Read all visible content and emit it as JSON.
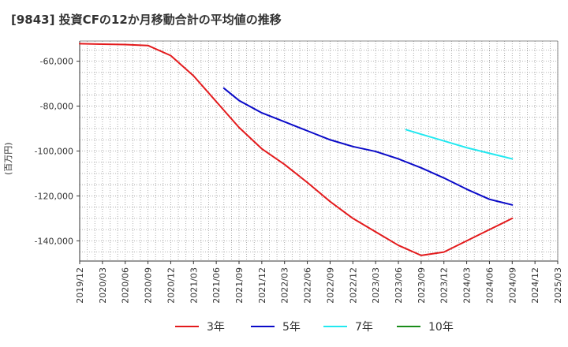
{
  "chart_data": {
    "type": "line",
    "title": "[9843]  投資CFの12か月移動合計の平均値の推移",
    "ylabel": "(百万円)",
    "xlabel": "",
    "ylim": [
      -149000,
      -51000
    ],
    "yticks": [
      -60000,
      -80000,
      -100000,
      -120000,
      -140000
    ],
    "ytick_labels": [
      "-60,000",
      "-80,000",
      "-100,000",
      "-120,000",
      "-140,000"
    ],
    "x_start": "2019/12",
    "x_end": "2025/03",
    "xtick_labels": [
      "2019/12",
      "2020/03",
      "2020/06",
      "2020/09",
      "2020/12",
      "2021/03",
      "2021/06",
      "2021/09",
      "2021/12",
      "2022/03",
      "2022/06",
      "2022/09",
      "2022/12",
      "2023/03",
      "2023/06",
      "2023/09",
      "2023/12",
      "2024/03",
      "2024/06",
      "2024/09",
      "2024/12",
      "2025/03"
    ],
    "grid": true,
    "legend_position": "bottom",
    "series": [
      {
        "name": "3年",
        "color": "#e31a1c",
        "points": [
          [
            "2019/12",
            -52200
          ],
          [
            "2020/03",
            -52400
          ],
          [
            "2020/06",
            -52600
          ],
          [
            "2020/09",
            -53000
          ],
          [
            "2020/12",
            -57500
          ],
          [
            "2021/03",
            -66500
          ],
          [
            "2021/06",
            -78000
          ],
          [
            "2021/09",
            -89500
          ],
          [
            "2021/12",
            -99000
          ],
          [
            "2022/03",
            -106000
          ],
          [
            "2022/06",
            -114000
          ],
          [
            "2022/09",
            -122500
          ],
          [
            "2022/12",
            -130000
          ],
          [
            "2023/03",
            -136000
          ],
          [
            "2023/06",
            -142000
          ],
          [
            "2023/09",
            -146500
          ],
          [
            "2023/12",
            -145000
          ],
          [
            "2024/03",
            -140000
          ],
          [
            "2024/06",
            -135000
          ],
          [
            "2024/09",
            -130000
          ]
        ]
      },
      {
        "name": "5年",
        "color": "#0a0ac8",
        "points": [
          [
            "2021/07",
            -72000
          ],
          [
            "2021/09",
            -77500
          ],
          [
            "2021/12",
            -83000
          ],
          [
            "2022/03",
            -87000
          ],
          [
            "2022/06",
            -91000
          ],
          [
            "2022/09",
            -95000
          ],
          [
            "2022/12",
            -98000
          ],
          [
            "2023/03",
            -100200
          ],
          [
            "2023/06",
            -103500
          ],
          [
            "2023/09",
            -107500
          ],
          [
            "2023/12",
            -112000
          ],
          [
            "2024/03",
            -117000
          ],
          [
            "2024/06",
            -121500
          ],
          [
            "2024/09",
            -124000
          ]
        ]
      },
      {
        "name": "7年",
        "color": "#22e8f0",
        "points": [
          [
            "2023/07",
            -90500
          ],
          [
            "2023/09",
            -92500
          ],
          [
            "2023/12",
            -95500
          ],
          [
            "2024/03",
            -98500
          ],
          [
            "2024/06",
            -101000
          ],
          [
            "2024/09",
            -103500
          ]
        ]
      },
      {
        "name": "10年",
        "color": "#1a8c1a",
        "points": []
      }
    ]
  }
}
